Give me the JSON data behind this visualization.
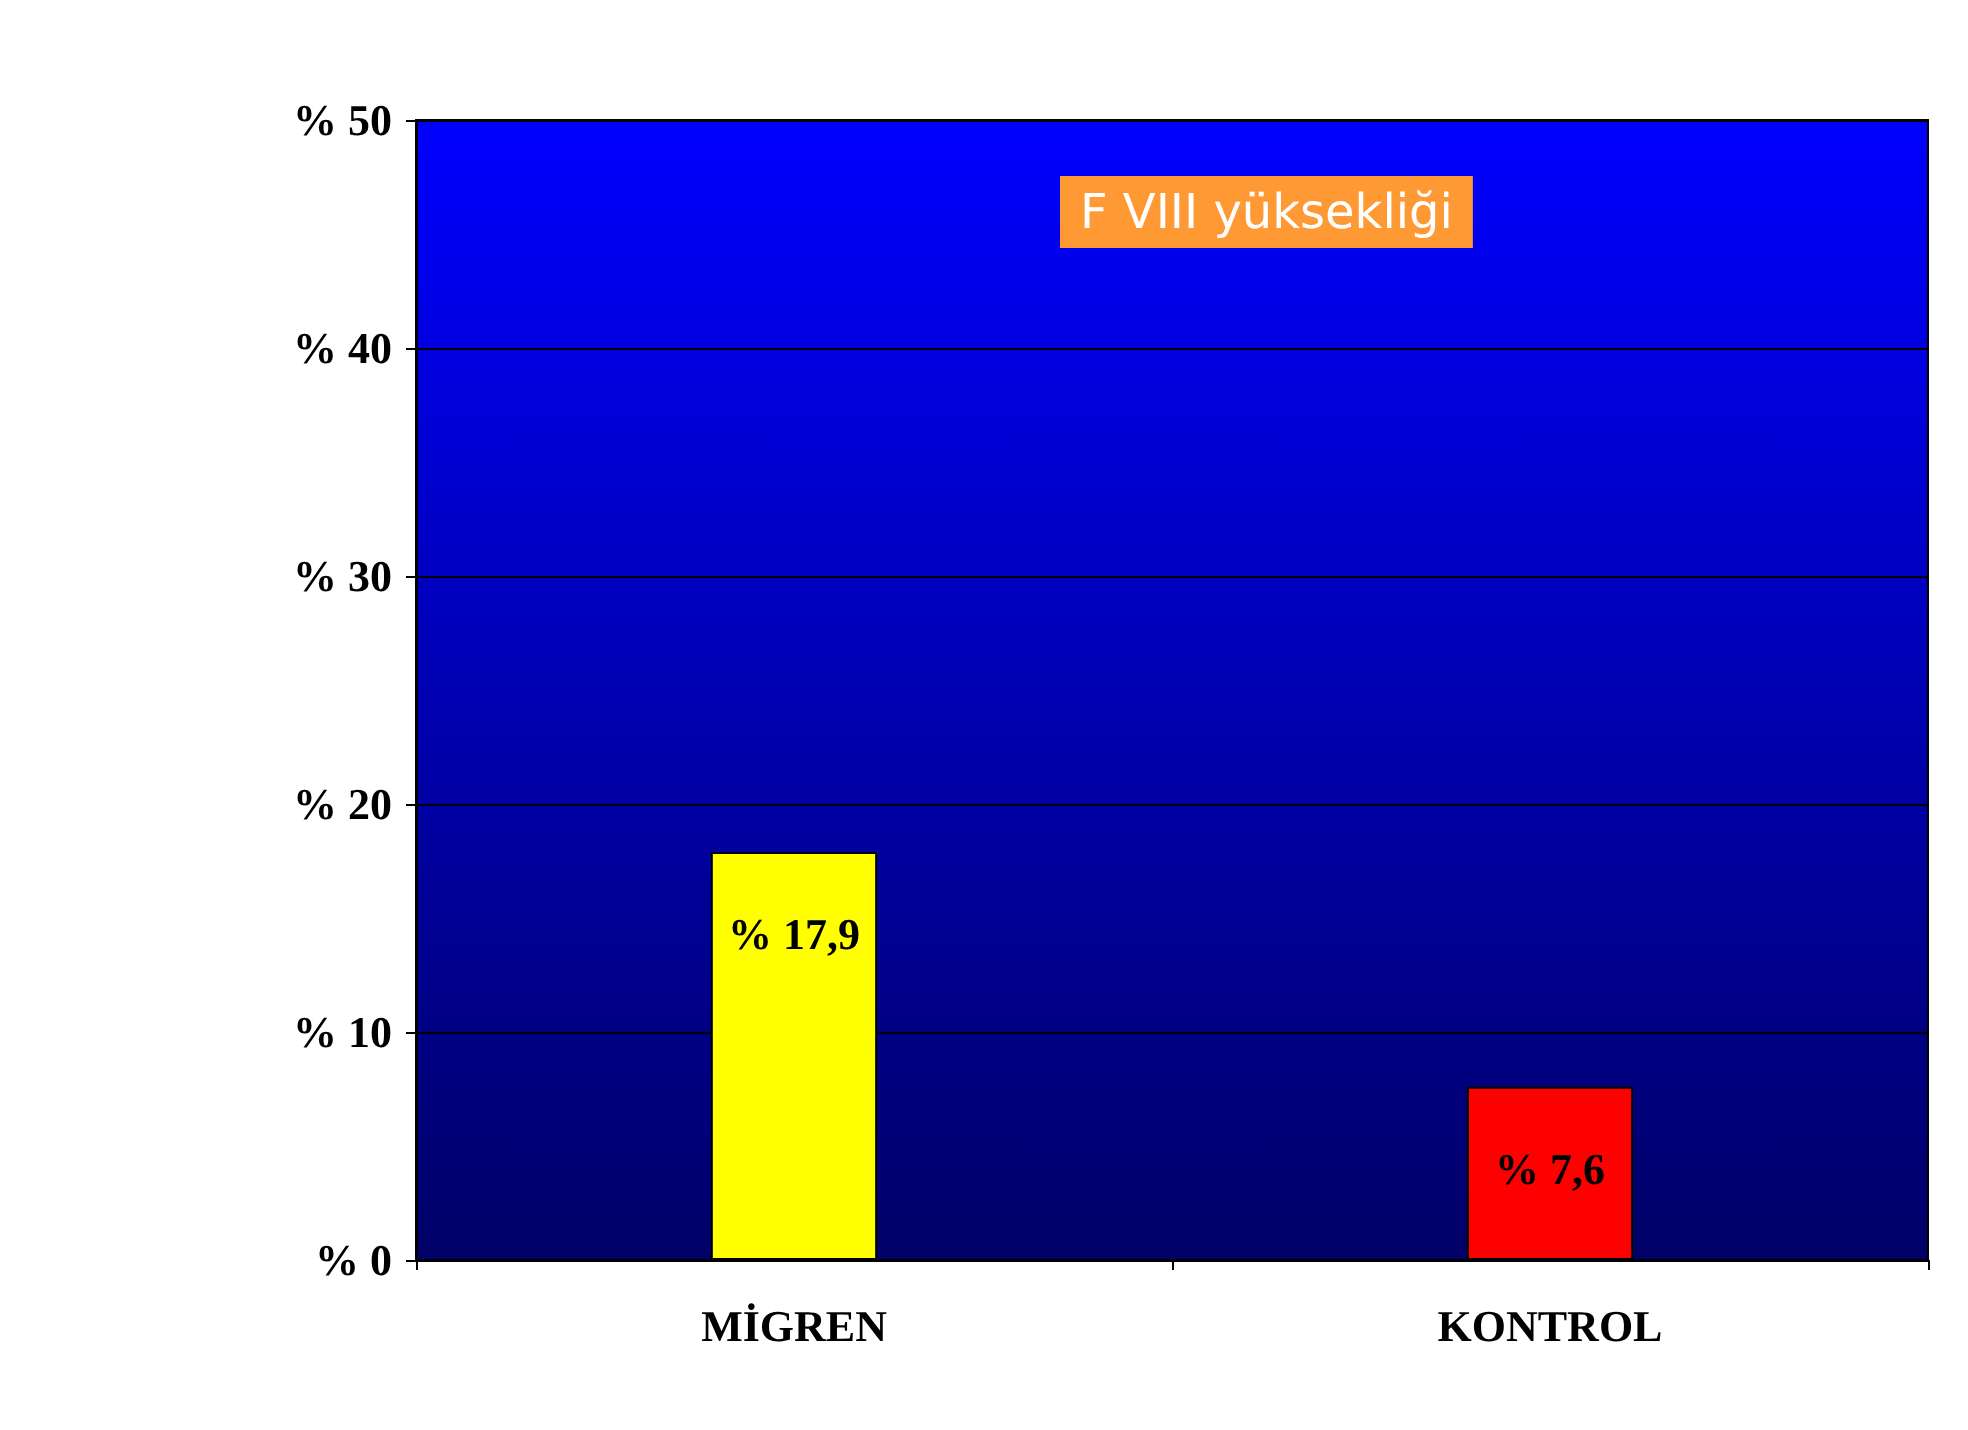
{
  "chart_data": {
    "type": "bar",
    "title": "F VIII yüksekliği",
    "categories": [
      "MİGREN",
      "KONTROL"
    ],
    "values": [
      17.9,
      7.6
    ],
    "colors": [
      "#ffff00",
      "#ff0000"
    ],
    "value_labels": [
      "% 17,9",
      "% 7,6"
    ],
    "ylim": [
      0,
      50
    ],
    "yticks": [
      {
        "value": 0,
        "label": "% 0"
      },
      {
        "value": 10,
        "label": "% 10"
      },
      {
        "value": 20,
        "label": "% 20"
      },
      {
        "value": 30,
        "label": "% 30"
      },
      {
        "value": 40,
        "label": "% 40"
      },
      {
        "value": 50,
        "label": "% 50"
      }
    ],
    "grid": true
  }
}
